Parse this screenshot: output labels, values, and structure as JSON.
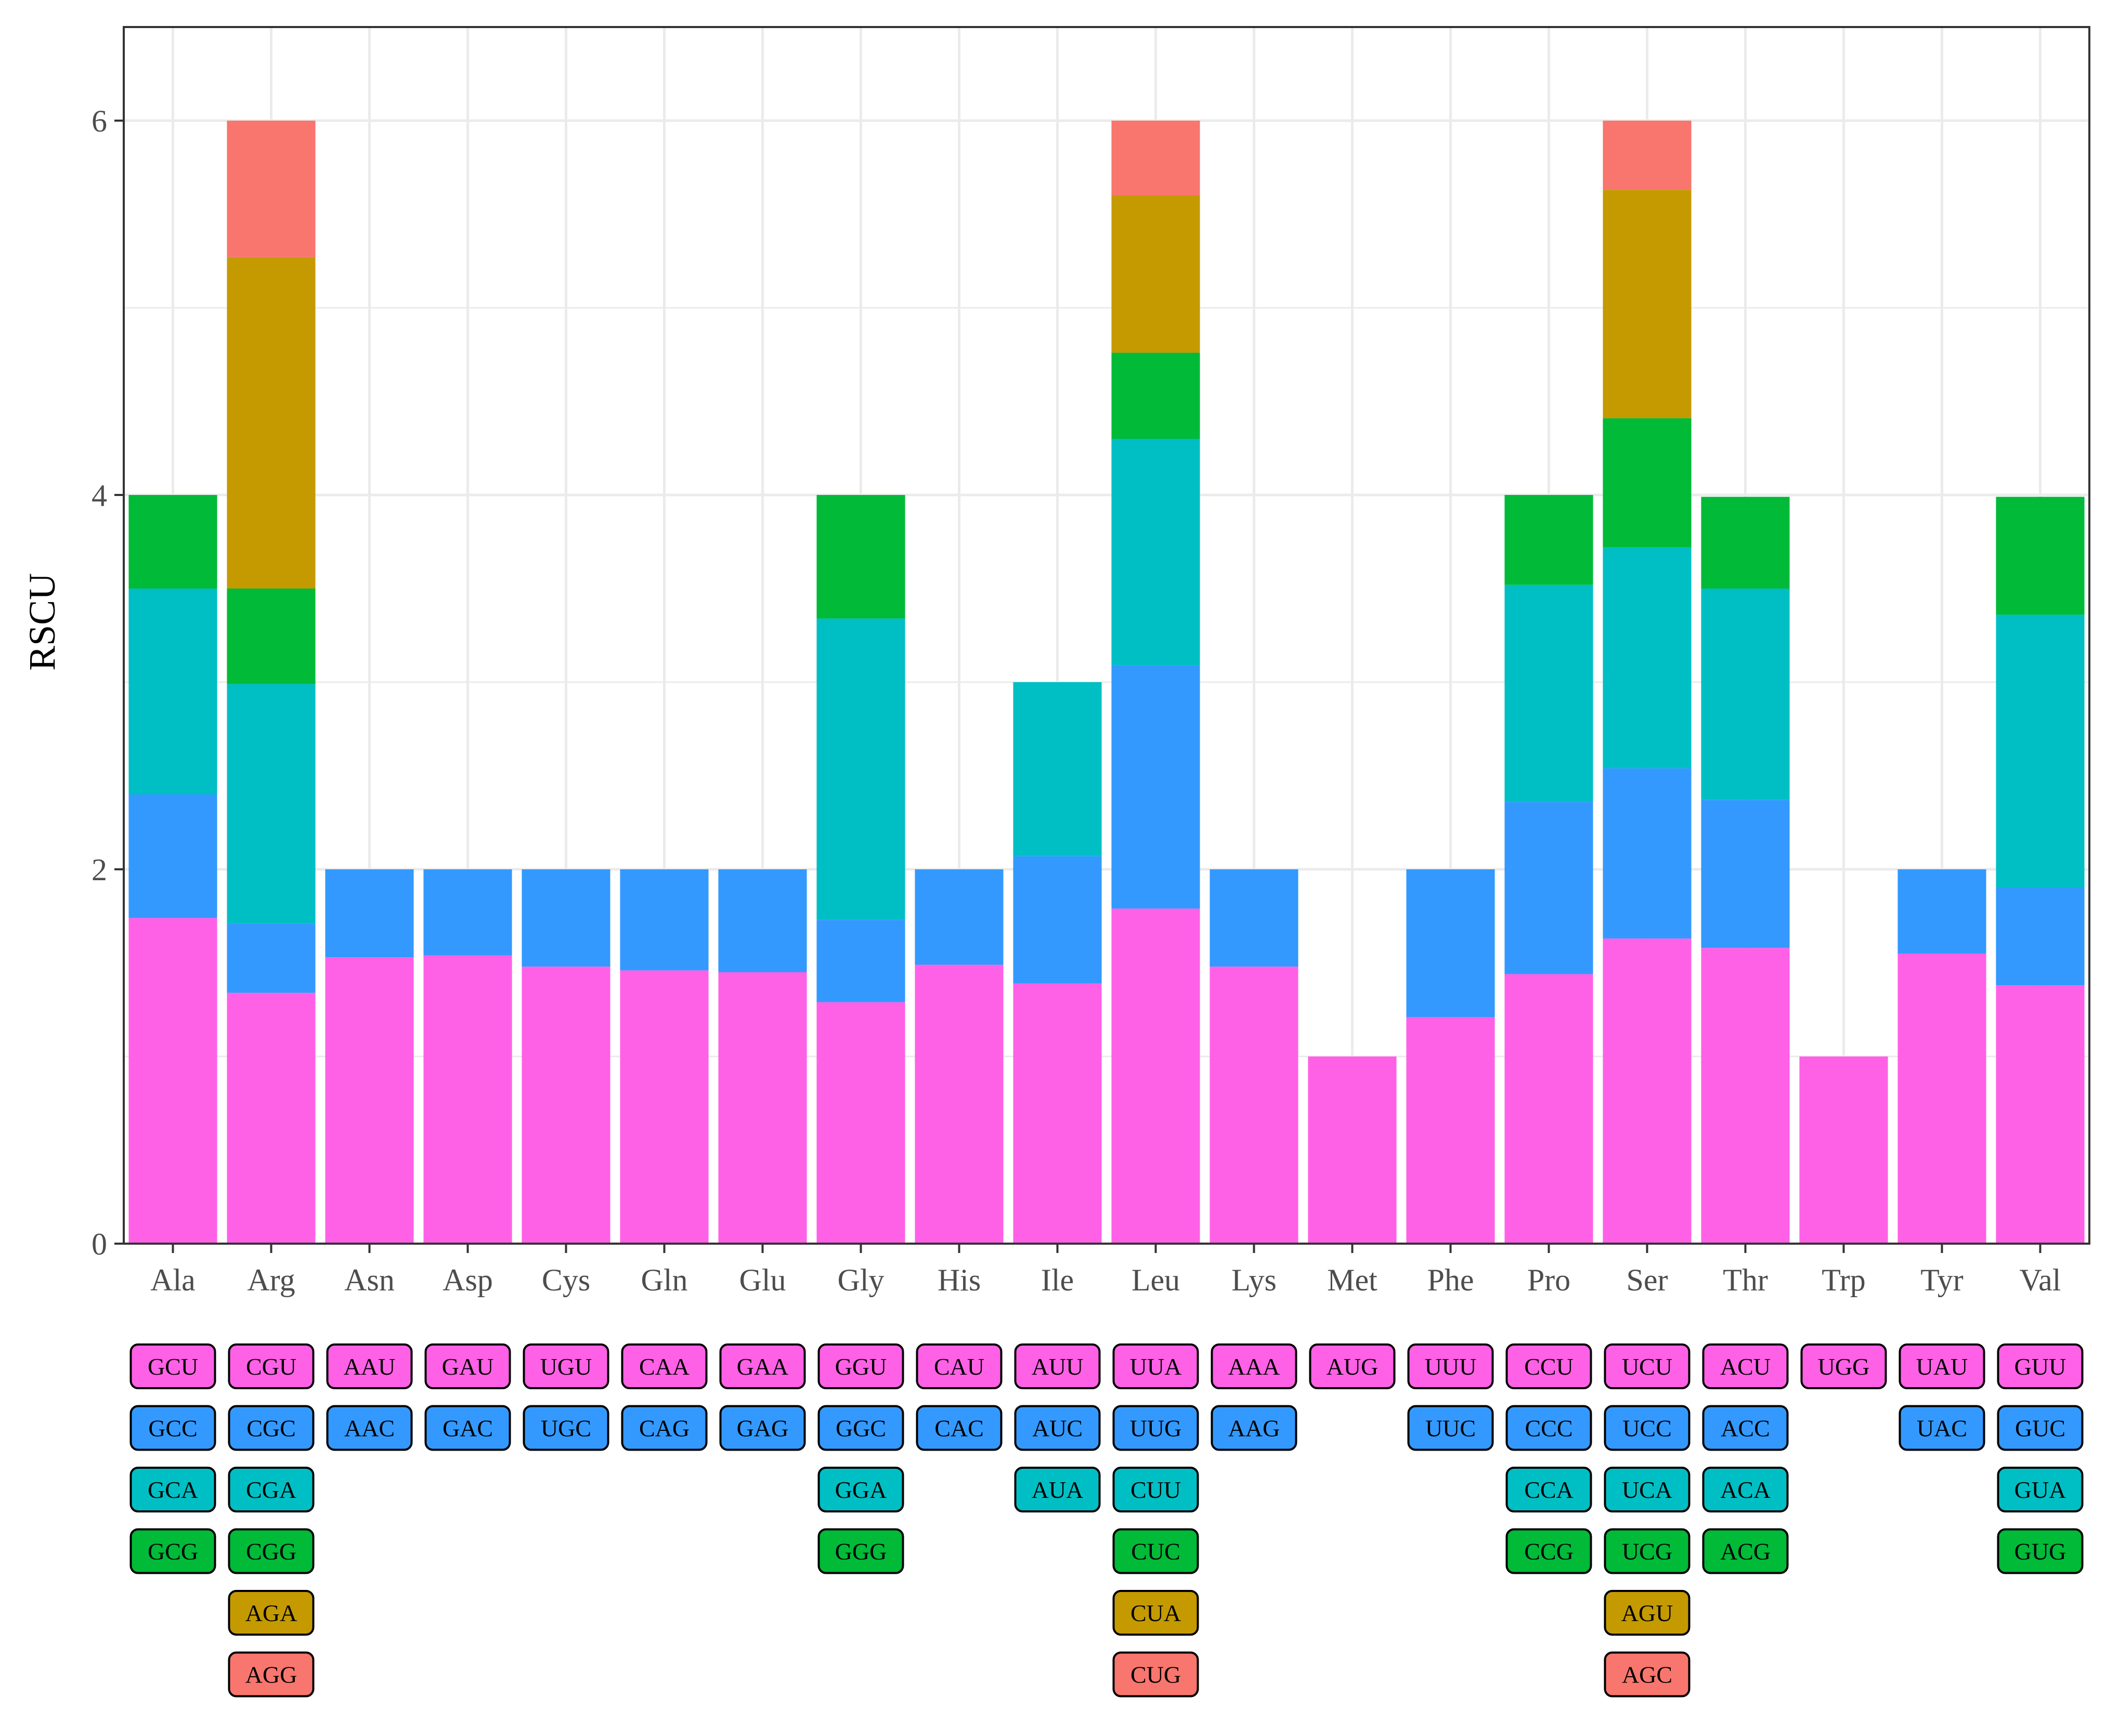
{
  "chart_data": {
    "type": "bar",
    "stacked": true,
    "title": "",
    "xlabel": "",
    "ylabel": "RSCU",
    "ylim": [
      0,
      6.5
    ],
    "yticks": [
      0,
      2,
      4,
      6
    ],
    "grid": true,
    "legend": "codon boxes below x axis",
    "colors": [
      "#FF61E6",
      "#3399FF",
      "#00BFC4",
      "#00BA38",
      "#C49A00",
      "#F8766D"
    ],
    "categories": [
      "Ala",
      "Arg",
      "Asn",
      "Asp",
      "Cys",
      "Gln",
      "Glu",
      "Gly",
      "His",
      "Ile",
      "Leu",
      "Lys",
      "Met",
      "Phe",
      "Pro",
      "Ser",
      "Thr",
      "Trp",
      "Tyr",
      "Val"
    ],
    "stacks": [
      {
        "aa": "Ala",
        "codons": [
          "GCU",
          "GCC",
          "GCA",
          "GCG"
        ],
        "values": [
          1.74,
          0.66,
          1.1,
          0.5
        ]
      },
      {
        "aa": "Arg",
        "codons": [
          "CGU",
          "CGC",
          "CGA",
          "CGG",
          "AGA",
          "AGG"
        ],
        "values": [
          1.34,
          0.37,
          1.28,
          0.51,
          1.77,
          0.73
        ]
      },
      {
        "aa": "Asn",
        "codons": [
          "AAU",
          "AAC"
        ],
        "values": [
          1.53,
          0.47
        ]
      },
      {
        "aa": "Asp",
        "codons": [
          "GAU",
          "GAC"
        ],
        "values": [
          1.54,
          0.46
        ]
      },
      {
        "aa": "Cys",
        "codons": [
          "UGU",
          "UGC"
        ],
        "values": [
          1.48,
          0.52
        ]
      },
      {
        "aa": "Gln",
        "codons": [
          "CAA",
          "CAG"
        ],
        "values": [
          1.46,
          0.54
        ]
      },
      {
        "aa": "Glu",
        "codons": [
          "GAA",
          "GAG"
        ],
        "values": [
          1.45,
          0.55
        ]
      },
      {
        "aa": "Gly",
        "codons": [
          "GGU",
          "GGC",
          "GGA",
          "GGG"
        ],
        "values": [
          1.29,
          0.44,
          1.61,
          0.66
        ]
      },
      {
        "aa": "His",
        "codons": [
          "CAU",
          "CAC"
        ],
        "values": [
          1.49,
          0.51
        ]
      },
      {
        "aa": "Ile",
        "codons": [
          "AUU",
          "AUC",
          "AUA"
        ],
        "values": [
          1.39,
          0.68,
          0.93
        ]
      },
      {
        "aa": "Leu",
        "codons": [
          "UUA",
          "UUG",
          "CUU",
          "CUC",
          "CUA",
          "CUG"
        ],
        "values": [
          1.79,
          1.3,
          1.21,
          0.46,
          0.84,
          0.4
        ]
      },
      {
        "aa": "Lys",
        "codons": [
          "AAA",
          "AAG"
        ],
        "values": [
          1.48,
          0.52
        ]
      },
      {
        "aa": "Met",
        "codons": [
          "AUG"
        ],
        "values": [
          1.0
        ]
      },
      {
        "aa": "Phe",
        "codons": [
          "UUU",
          "UUC"
        ],
        "values": [
          1.21,
          0.79
        ]
      },
      {
        "aa": "Pro",
        "codons": [
          "CCU",
          "CCC",
          "CCA",
          "CCG"
        ],
        "values": [
          1.44,
          0.92,
          1.16,
          0.48
        ]
      },
      {
        "aa": "Ser",
        "codons": [
          "UCU",
          "UCC",
          "UCA",
          "UCG",
          "AGU",
          "AGC"
        ],
        "values": [
          1.63,
          0.91,
          1.18,
          0.69,
          1.22,
          0.37
        ]
      },
      {
        "aa": "Thr",
        "codons": [
          "ACU",
          "ACC",
          "ACA",
          "ACG"
        ],
        "values": [
          1.58,
          0.79,
          1.13,
          0.49
        ]
      },
      {
        "aa": "Trp",
        "codons": [
          "UGG"
        ],
        "values": [
          1.0
        ]
      },
      {
        "aa": "Tyr",
        "codons": [
          "UAU",
          "UAC"
        ],
        "values": [
          1.55,
          0.45
        ]
      },
      {
        "aa": "Val",
        "codons": [
          "GUU",
          "GUC",
          "GUA",
          "GUG"
        ],
        "values": [
          1.38,
          0.52,
          1.46,
          0.63
        ]
      }
    ]
  }
}
